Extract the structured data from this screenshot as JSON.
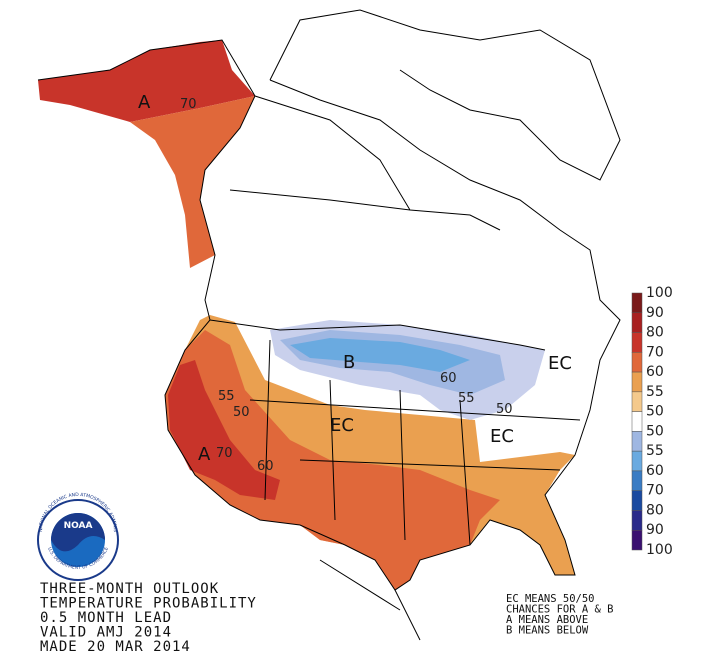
{
  "map_labels": [
    "A",
    "70",
    "B",
    "EC",
    "A",
    "70",
    "60",
    "55",
    "50",
    "EC",
    "60",
    "55",
    "50",
    "EC"
  ],
  "legend": {
    "entries": [
      {
        "label": "100",
        "color": "#7a1a1a"
      },
      {
        "label": "90",
        "color": "#a82020"
      },
      {
        "label": "80",
        "color": "#c8342a"
      },
      {
        "label": "70",
        "color": "#e0683a"
      },
      {
        "label": "60",
        "color": "#eaa050"
      },
      {
        "label": "55",
        "color": "#f4c98c"
      },
      {
        "label": "50",
        "color": "#ffffff"
      },
      {
        "label": "50",
        "color": "#c9d0ec"
      },
      {
        "label": "55",
        "color": "#9fb7e2"
      },
      {
        "label": "60",
        "color": "#6aaae0"
      },
      {
        "label": "70",
        "color": "#3a7cc4"
      },
      {
        "label": "80",
        "color": "#1a4aa0"
      },
      {
        "label": "90",
        "color": "#2a2a8a"
      },
      {
        "label": "100",
        "color": "#3a1070"
      }
    ]
  },
  "outlook_text": [
    "THREE-MONTH OUTLOOK",
    "TEMPERATURE PROBABILITY",
    "0.5 MONTH LEAD",
    "VALID AMJ 2014",
    "MADE 20 MAR 2014"
  ],
  "key_text": [
    "EC MEANS 50/50",
    "CHANCES FOR A & B",
    "A MEANS ABOVE",
    "B MEANS BELOW"
  ],
  "logo": {
    "name": "NOAA",
    "ring_top": "NATIONAL OCEANIC AND ATMOSPHERIC ADMINISTRATION",
    "ring_bottom": "U.S. DEPARTMENT OF COMMERCE"
  }
}
